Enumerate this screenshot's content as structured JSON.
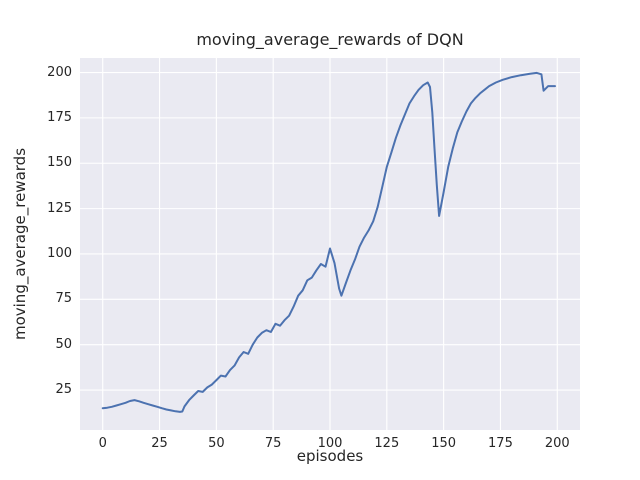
{
  "chart_data": {
    "type": "line",
    "title": "moving_average_rewards of DQN",
    "xlabel": "episodes",
    "ylabel": "moving_average_rewards",
    "xlim": [
      -10,
      210
    ],
    "ylim": [
      3,
      208
    ],
    "x_ticks": [
      0,
      25,
      50,
      75,
      100,
      125,
      150,
      175,
      200
    ],
    "y_ticks": [
      25,
      50,
      75,
      100,
      125,
      150,
      175,
      200
    ],
    "grid": true,
    "legend": "none",
    "style": "seaborn-darkgrid",
    "plot_bg_color": "#EAEAF2",
    "grid_color": "#FFFFFF",
    "line_color": "#4C72B0",
    "text_color": "#262626",
    "series": [
      {
        "name": "moving_average_rewards",
        "x": [
          0,
          2,
          4,
          6,
          8,
          10,
          12,
          14,
          16,
          18,
          20,
          22,
          24,
          26,
          28,
          30,
          32,
          34,
          35,
          36,
          38,
          40,
          42,
          44,
          46,
          48,
          50,
          52,
          54,
          56,
          58,
          60,
          62,
          64,
          66,
          68,
          70,
          72,
          74,
          76,
          78,
          80,
          82,
          84,
          86,
          88,
          90,
          92,
          94,
          96,
          98,
          100,
          102,
          104,
          105,
          107,
          109,
          111,
          113,
          115,
          117,
          119,
          121,
          123,
          125,
          127,
          129,
          131,
          133,
          135,
          137,
          139,
          141,
          143,
          144,
          145,
          146,
          147,
          148,
          150,
          152,
          154,
          156,
          158,
          160,
          162,
          164,
          166,
          168,
          170,
          173,
          176,
          180,
          184,
          188,
          191,
          193,
          194,
          196,
          199
        ],
        "y": [
          15,
          15.3,
          15.8,
          16.5,
          17.2,
          18,
          19,
          19.5,
          18.8,
          18,
          17.2,
          16.5,
          15.8,
          15,
          14.3,
          13.8,
          13.3,
          13,
          13.2,
          16,
          19.5,
          22,
          24.5,
          24,
          26.5,
          28,
          30.5,
          33,
          32.5,
          36,
          38.5,
          43,
          46,
          45,
          50,
          54,
          56.5,
          58,
          57,
          61.5,
          60.5,
          63.5,
          66,
          71,
          77,
          80,
          85.5,
          87,
          91,
          94.5,
          93,
          103,
          95,
          81,
          77,
          84,
          91,
          97,
          104,
          109,
          113,
          118,
          126,
          137,
          148,
          156,
          164,
          171,
          177,
          183,
          187,
          190.5,
          193,
          194.5,
          192,
          178,
          158,
          138,
          121,
          134,
          148,
          158,
          167,
          173,
          178.5,
          183,
          186,
          188.5,
          190.5,
          192.5,
          194.5,
          196,
          197.5,
          198.5,
          199.3,
          199.8,
          199,
          190,
          192.5,
          192.5
        ]
      }
    ]
  }
}
